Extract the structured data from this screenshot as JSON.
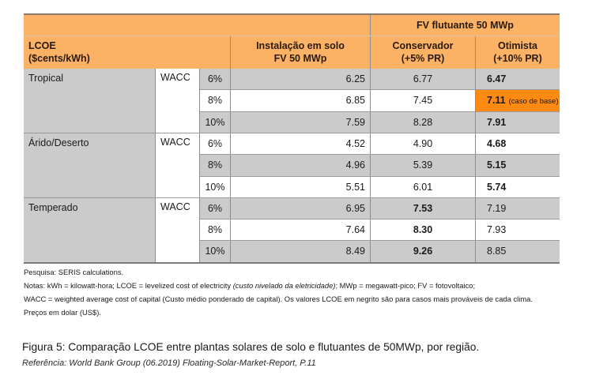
{
  "table": {
    "header": {
      "group_label": "FV flutuante 50 MWp",
      "lcoe_label_line1": "LCOE",
      "lcoe_label_line2": "($cents/kWh)",
      "solo_line1": "Instalação em solo",
      "solo_line2": "FV 50 MWp",
      "conservador_line1": "Conservador",
      "conservador_line2": "(+5% PR)",
      "otimista_line1": "Otimista",
      "otimista_line2": "(+10% PR)"
    },
    "regions": [
      {
        "name": "Tropical",
        "wacc_label": "WACC",
        "rows": [
          {
            "wacc": "6%",
            "solo": "6.25",
            "conservador": "6.77",
            "otimista": "6.47",
            "bold": "otimista",
            "note": ""
          },
          {
            "wacc": "8%",
            "solo": "6.85",
            "conservador": "7.45",
            "otimista": "7.11",
            "bold": "otimista",
            "note": "(caso de base)"
          },
          {
            "wacc": "10%",
            "solo": "7.59",
            "conservador": "8.28",
            "otimista": "7.91",
            "bold": "otimista",
            "note": ""
          }
        ]
      },
      {
        "name": "Árido/Deserto",
        "wacc_label": "WACC",
        "rows": [
          {
            "wacc": "6%",
            "solo": "4.52",
            "conservador": "4.90",
            "otimista": "4.68",
            "bold": "otimista",
            "note": ""
          },
          {
            "wacc": "8%",
            "solo": "4.96",
            "conservador": "5.39",
            "otimista": "5.15",
            "bold": "otimista",
            "note": ""
          },
          {
            "wacc": "10%",
            "solo": "5.51",
            "conservador": "6.01",
            "otimista": "5.74",
            "bold": "otimista",
            "note": ""
          }
        ]
      },
      {
        "name": "Temperado",
        "wacc_label": "WACC",
        "rows": [
          {
            "wacc": "6%",
            "solo": "6.95",
            "conservador": "7.53",
            "otimista": "7.19",
            "bold": "conservador",
            "note": ""
          },
          {
            "wacc": "8%",
            "solo": "7.64",
            "conservador": "8.30",
            "otimista": "7.93",
            "bold": "conservador",
            "note": ""
          },
          {
            "wacc": "10%",
            "solo": "8.49",
            "conservador": "9.26",
            "otimista": "8.85",
            "bold": "conservador",
            "note": ""
          }
        ]
      }
    ]
  },
  "colors": {
    "header_bg": "#fbb265",
    "highlight_bg": "#ff8a12",
    "shaded_row": "#cbcbcb"
  },
  "notes": {
    "source": "Pesquisa:  SERIS calculations.",
    "line1_a": "Notas:  kWh = kilowatt-hora; LCOE = levelized cost of  electricity ",
    "line1_italic": "(custo nivelado da eletricidade)",
    "line1_b": "; MWp = megawatt-pico; FV = fotovoltaico;",
    "line2": "WACC = weighted average cost of capital (Custo médio ponderado de capital). Os valores LCOE em negrito são para casos mais prováveis de cada clima.",
    "line3": "Preços em dolar (US$)."
  },
  "caption": "Figura 5: Comparação LCOE entre plantas solares de solo e flutuantes de 50MWp, por região.",
  "reference": "Referência: World Bank Group (06.2019) Floating-Solar-Market-Report, P.11"
}
